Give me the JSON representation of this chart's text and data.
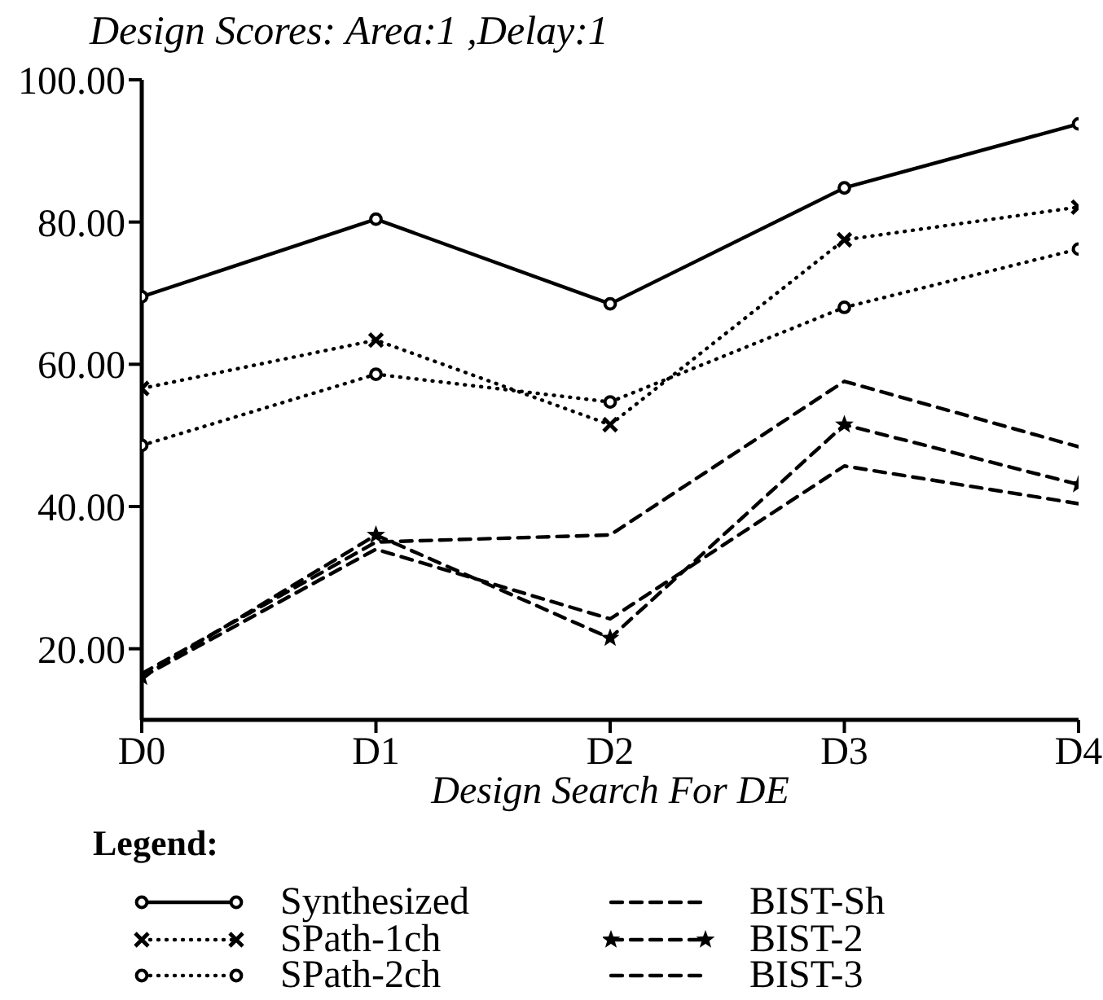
{
  "chart_data": {
    "type": "line",
    "title": "Design Scores: Area:1 ,Delay:1",
    "xlabel": "Design Search For DE",
    "legend_title": "Legend:",
    "legend": "bottom",
    "categories": [
      "D0",
      "D1",
      "D2",
      "D3",
      "D4"
    ],
    "series": [
      {
        "name": "Synthesized",
        "color": "#000000",
        "values": [
          69.5,
          80.4,
          68.5,
          84.8,
          93.8
        ],
        "marker": "circle",
        "line_style": "solid"
      },
      {
        "name": "SPath-1ch",
        "color": "#000000",
        "values": [
          56.6,
          63.4,
          51.5,
          77.5,
          82.1
        ],
        "marker": "cross",
        "line_style": "dotted"
      },
      {
        "name": "SPath-2ch",
        "color": "#000000",
        "values": [
          48.6,
          58.6,
          54.7,
          68,
          76.2
        ],
        "marker": "circle",
        "line_style": "dotted"
      },
      {
        "name": "BIST-Sh",
        "color": "#000000",
        "values": [
          16,
          34,
          24.2,
          45.7,
          40.4
        ],
        "marker": "none",
        "line_style": "dashed"
      },
      {
        "name": "BIST-2",
        "color": "#000000",
        "values": [
          16,
          36,
          21.5,
          51.5,
          43.1
        ],
        "marker": "star",
        "line_style": "dashed"
      },
      {
        "name": "BIST-3",
        "color": "#000000",
        "values": [
          16.5,
          35,
          36,
          57.6,
          48.4
        ],
        "marker": "none",
        "line_style": "dashed"
      }
    ],
    "ylim": [
      10,
      100
    ],
    "yticks": [
      {
        "value": 20,
        "label": "20.00"
      },
      {
        "value": 40,
        "label": "40.00"
      },
      {
        "value": 60,
        "label": "60.00"
      },
      {
        "value": 80,
        "label": "80.00"
      },
      {
        "value": 100,
        "label": "100.00"
      }
    ]
  }
}
